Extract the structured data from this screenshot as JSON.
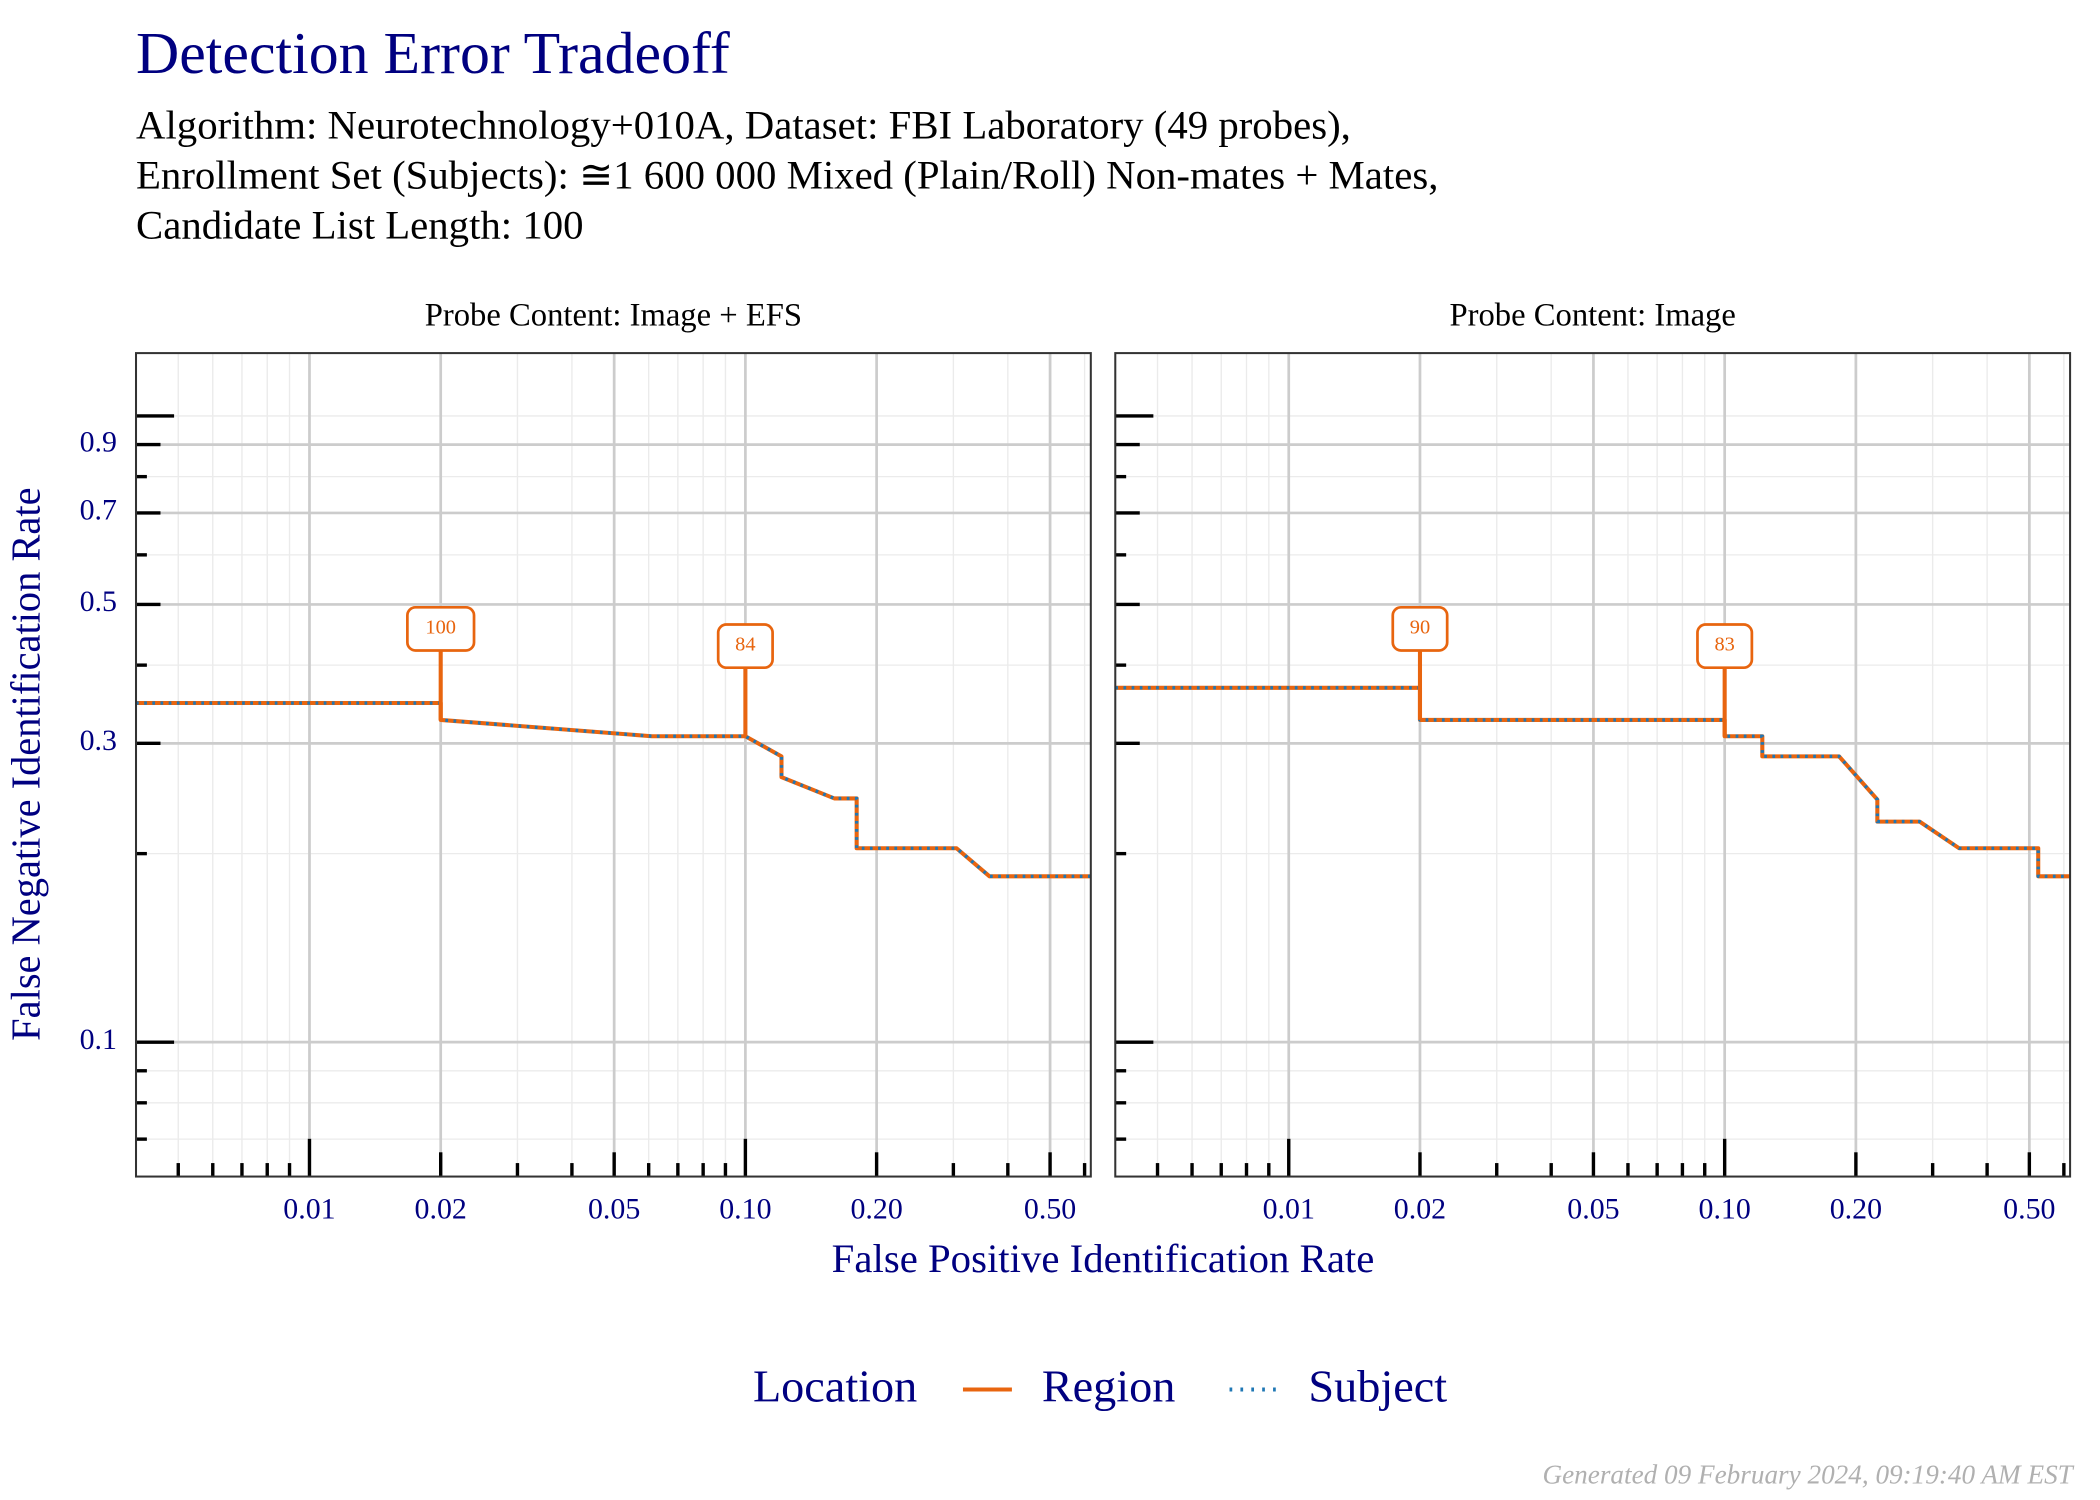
{
  "title": "Detection Error Tradeoff",
  "subtitle": [
    "Algorithm: Neurotechnology+010A, Dataset: FBI Laboratory (49 probes),",
    "Enrollment Set (Subjects): ≅1 600 000 Mixed (Plain/Roll) Non-mates + Mates,",
    "Candidate List Length: 100"
  ],
  "x_label": "False Positive Identification Rate",
  "y_label": "False Negative Identification Rate",
  "legend_title": "Location",
  "footer": "Generated 09 February 2024, 09:19:40 AM EST",
  "chart_data": [
    {
      "type": "line",
      "title": "Probe Content: Image + EFS",
      "log_x": true,
      "log_y": true,
      "grid": true,
      "xlim": [
        0.004,
        0.62
      ],
      "ylim": [
        0.061,
        1.26
      ],
      "xticks": [
        0.01,
        0.02,
        0.05,
        {
          "value": 0.1,
          "label": "0.10"
        },
        {
          "value": 0.2,
          "label": "0.20"
        },
        {
          "value": 0.5,
          "label": "0.50"
        }
      ],
      "yticks": [
        0.1,
        0.3,
        0.5,
        0.7,
        0.9
      ],
      "xminor": [
        0.005,
        0.006,
        0.007,
        0.008,
        0.009,
        0.03,
        0.04,
        0.06,
        0.07,
        0.08,
        0.09,
        0.3,
        0.4,
        0.6
      ],
      "yminor": [
        0.07,
        0.08,
        0.09,
        0.2,
        0.4,
        0.6,
        0.8,
        1.0
      ],
      "series": [
        {
          "name": "Region",
          "color": "#e8650f",
          "style": "solid",
          "x": [
            0.004,
            0.02,
            0.02,
            0.061,
            0.1,
            0.121,
            0.121,
            0.16,
            0.18,
            0.18,
            0.305,
            0.363,
            0.62
          ],
          "y": [
            0.348,
            0.348,
            0.327,
            0.308,
            0.308,
            0.286,
            0.265,
            0.245,
            0.245,
            0.204,
            0.204,
            0.184,
            0.184
          ]
        },
        {
          "name": "Subject",
          "color": "#1f77b4",
          "style": "dotted",
          "x": [
            0.004,
            0.02,
            0.02,
            0.061,
            0.1,
            0.121,
            0.121,
            0.16,
            0.18,
            0.18,
            0.305,
            0.363,
            0.62
          ],
          "y": [
            0.348,
            0.348,
            0.327,
            0.308,
            0.308,
            0.286,
            0.265,
            0.245,
            0.245,
            0.204,
            0.204,
            0.184,
            0.184
          ]
        }
      ],
      "annotations": [
        {
          "x": 0.02,
          "y": 0.457,
          "label": "100"
        },
        {
          "x": 0.1,
          "y": 0.429,
          "label": "84"
        }
      ]
    },
    {
      "type": "line",
      "title": "Probe Content: Image",
      "log_x": true,
      "log_y": true,
      "grid": true,
      "xlim": [
        0.004,
        0.62
      ],
      "ylim": [
        0.061,
        1.26
      ],
      "xticks": [
        0.01,
        0.02,
        0.05,
        {
          "value": 0.1,
          "label": "0.10"
        },
        {
          "value": 0.2,
          "label": "0.20"
        },
        {
          "value": 0.5,
          "label": "0.50"
        }
      ],
      "yticks": [
        0.1,
        0.3,
        0.5,
        0.7,
        0.9
      ],
      "xminor": [
        0.005,
        0.006,
        0.007,
        0.008,
        0.009,
        0.03,
        0.04,
        0.06,
        0.07,
        0.08,
        0.09,
        0.3,
        0.4,
        0.6
      ],
      "yminor": [
        0.07,
        0.08,
        0.09,
        0.2,
        0.4,
        0.6,
        0.8,
        1.0
      ],
      "series": [
        {
          "name": "Region",
          "color": "#e8650f",
          "style": "solid",
          "x": [
            0.004,
            0.02,
            0.02,
            0.1,
            0.1,
            0.122,
            0.122,
            0.183,
            0.224,
            0.224,
            0.28,
            0.345,
            0.524,
            0.524,
            0.62
          ],
          "y": [
            0.368,
            0.368,
            0.327,
            0.327,
            0.308,
            0.308,
            0.286,
            0.286,
            0.244,
            0.225,
            0.225,
            0.204,
            0.204,
            0.184,
            0.184
          ]
        },
        {
          "name": "Subject",
          "color": "#1f77b4",
          "style": "dotted",
          "x": [
            0.004,
            0.02,
            0.02,
            0.1,
            0.1,
            0.122,
            0.122,
            0.183,
            0.224,
            0.224,
            0.28,
            0.345,
            0.524,
            0.524,
            0.62
          ],
          "y": [
            0.368,
            0.368,
            0.327,
            0.327,
            0.308,
            0.308,
            0.286,
            0.286,
            0.244,
            0.225,
            0.225,
            0.204,
            0.204,
            0.184,
            0.184
          ]
        }
      ],
      "annotations": [
        {
          "x": 0.02,
          "y": 0.457,
          "label": "90"
        },
        {
          "x": 0.1,
          "y": 0.429,
          "label": "83"
        }
      ]
    }
  ]
}
